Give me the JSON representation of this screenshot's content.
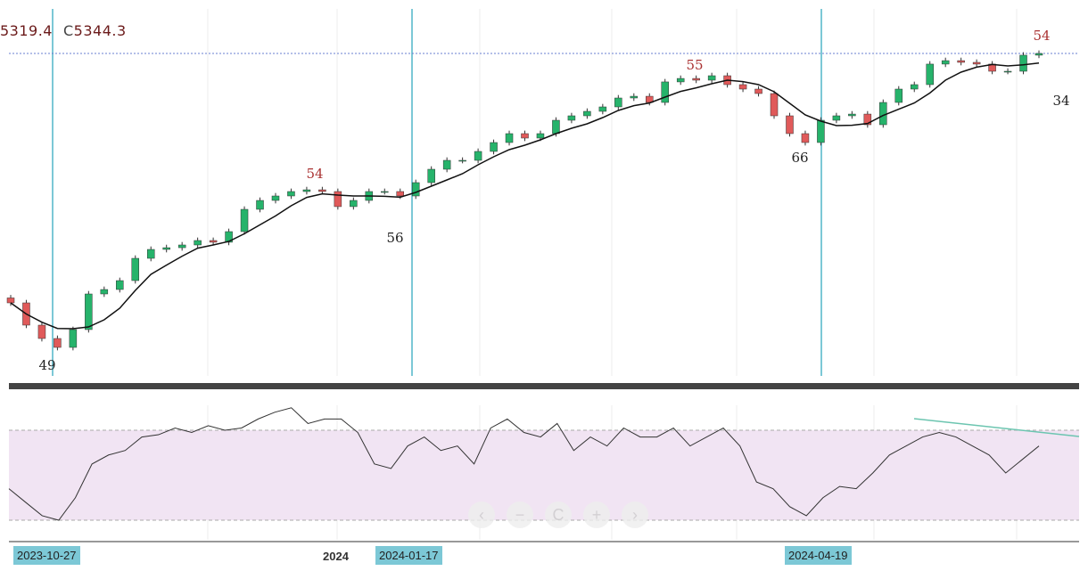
{
  "header": {
    "open_partial": "5319.4",
    "close_label": "C",
    "close_value": "5344.3"
  },
  "chart_data": [
    {
      "type": "candlestick",
      "series": [
        {
          "name": "",
          "closes": [
            4332,
            4242,
            4188,
            4152,
            4224,
            4368,
            4386,
            4422,
            4512,
            4548,
            4555,
            4566,
            4584,
            4577,
            4620,
            4710,
            4746,
            4764,
            4782,
            4789,
            4782,
            4721,
            4746,
            4782,
            4782,
            4764,
            4818,
            4872,
            4908,
            4908,
            4944,
            4980,
            5016,
            4998,
            5016,
            5070,
            5088,
            5106,
            5124,
            5160,
            5167,
            5142,
            5225,
            5239,
            5232,
            5250,
            5214,
            5196,
            5178,
            5088,
            5016,
            4980,
            5070,
            5088,
            5095,
            5052,
            5142,
            5196,
            5214,
            5297,
            5311,
            5304,
            5297,
            5268,
            5268,
            5333,
            5340
          ]
        }
      ],
      "overlay": "moving-average",
      "last_price_line": 5340,
      "annotations": [
        {
          "text": "49",
          "color": "#222"
        },
        {
          "text": "54",
          "color": "#a33"
        },
        {
          "text": "56",
          "color": "#222"
        },
        {
          "text": "55",
          "color": "#a33"
        },
        {
          "text": "66",
          "color": "#222"
        },
        {
          "text": "54",
          "color": "#a33"
        },
        {
          "text": "34",
          "color": "#222"
        }
      ],
      "colors": {
        "up": "#26b36b",
        "down": "#e05a5a",
        "ma": "#111",
        "marker_line": "#7cc8d6"
      }
    },
    {
      "type": "line",
      "name": "",
      "values": [
        44,
        38,
        32,
        30,
        40,
        55,
        59,
        61,
        67,
        68,
        71,
        69,
        72,
        70,
        71,
        75,
        78,
        80,
        73,
        75,
        75,
        69,
        55,
        53,
        63,
        67,
        61,
        63,
        55,
        71,
        75,
        69,
        67,
        73,
        61,
        67,
        63,
        71,
        67,
        67,
        71,
        63,
        67,
        71,
        63,
        47,
        44,
        36,
        32,
        40,
        45,
        44,
        51,
        59,
        63,
        67,
        69,
        67,
        63,
        59,
        51,
        57,
        63
      ],
      "ylim": [
        0,
        100
      ],
      "bands": [
        30,
        70
      ],
      "band_color": "#f1e4f3"
    }
  ],
  "x_axis": {
    "ticks": [
      "2023-10-27",
      "2024",
      "2024-01-17",
      "2024-04-19"
    ]
  },
  "nav_buttons": [
    "‹",
    "−",
    "C",
    "+",
    "›"
  ]
}
